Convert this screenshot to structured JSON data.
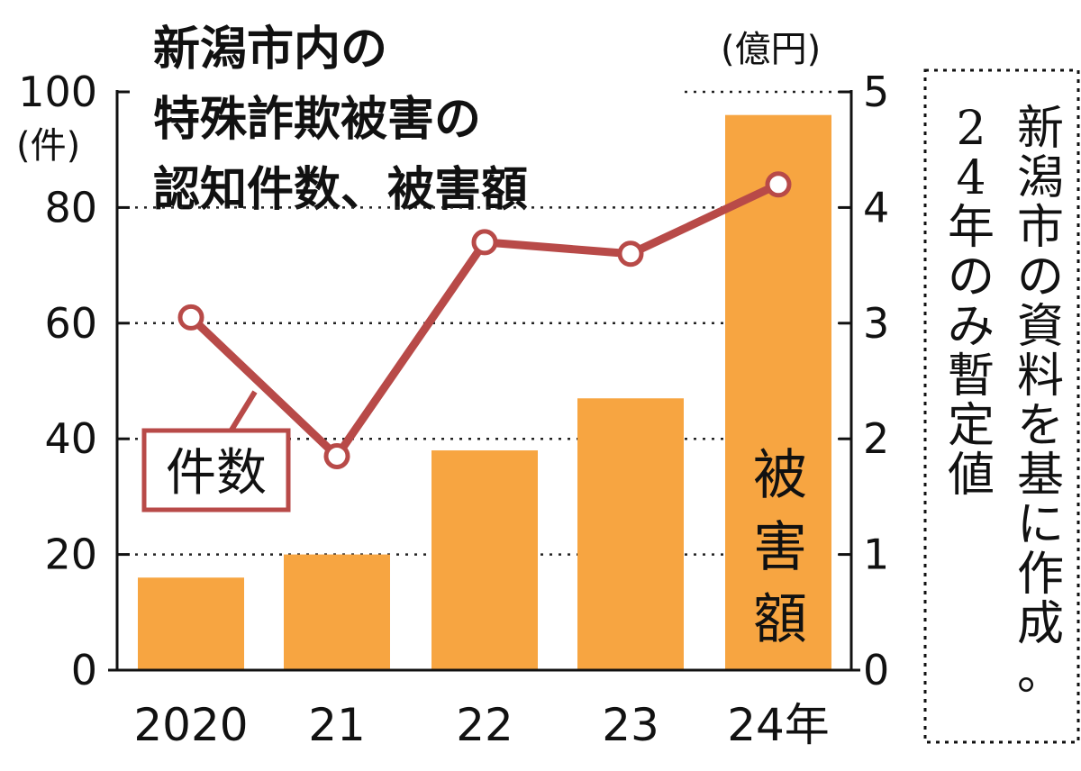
{
  "chart_data": {
    "type": "bar+line",
    "title_lines": [
      "新潟市内の",
      "特殊詐欺被害の",
      "認知件数、被害額"
    ],
    "categories": [
      "2020",
      "21",
      "22",
      "23",
      "24年"
    ],
    "series": [
      {
        "name": "被害額",
        "kind": "bar",
        "axis": "right",
        "color": "#f7a541",
        "values": [
          0.8,
          1.0,
          1.9,
          2.35,
          4.8
        ]
      },
      {
        "name": "件数",
        "kind": "line",
        "axis": "left",
        "color": "#b84a48",
        "values": [
          61,
          37,
          74,
          72,
          84
        ]
      }
    ],
    "y_left": {
      "unit": "(件)",
      "ylim": [
        0,
        100
      ],
      "ticks": [
        "0",
        "20",
        "40",
        "60",
        "80",
        "100"
      ]
    },
    "y_right": {
      "unit": "(億円)",
      "ylim": [
        0,
        5
      ],
      "ticks": [
        "0",
        "1",
        "2",
        "3",
        "4",
        "5"
      ]
    },
    "grid": "dotted",
    "note": [
      "新潟市の資料を基に作成。",
      "24年のみ暫定値"
    ]
  }
}
